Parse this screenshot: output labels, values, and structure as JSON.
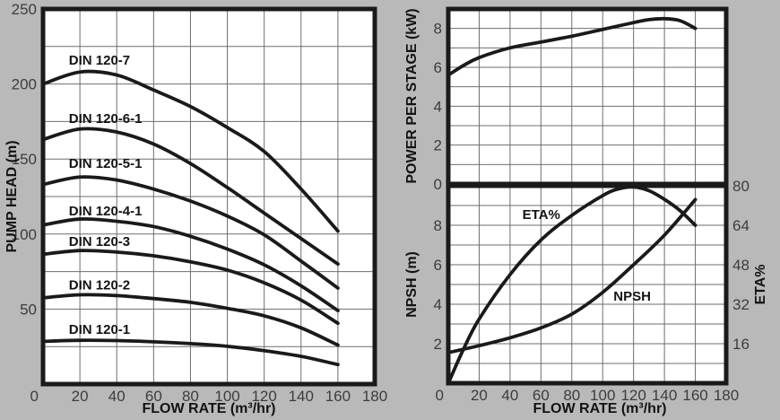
{
  "colors": {
    "background": "#b9b9b9",
    "plot_bg": "#ffffff",
    "grid": "#6e6e6e",
    "curve": "#1a1a1a",
    "border": "#1a1a1a",
    "tick_text": "#3d3d3d",
    "title_text": "#131313"
  },
  "chart_data": [
    {
      "id": "pump-head",
      "type": "line",
      "title": "",
      "xlabel": "FLOW RATE (m³/hr)",
      "ylabel": "PUMP HEAD (m)",
      "xlim": [
        0,
        180
      ],
      "ylim": [
        0,
        250
      ],
      "xticks": [
        0,
        20,
        40,
        60,
        80,
        100,
        120,
        140,
        160,
        180
      ],
      "yticks": [
        50,
        100,
        150,
        200,
        250
      ],
      "grid_x_step": 20,
      "grid_y_step": 25,
      "grid": true,
      "legend": "labels drawn inside plot above each curve",
      "x": [
        0,
        20,
        40,
        60,
        80,
        100,
        120,
        140,
        160
      ],
      "series": [
        {
          "name": "DIN 120-7",
          "values": [
            200,
            208,
            206,
            196,
            185,
            171,
            155,
            130,
            102
          ]
        },
        {
          "name": "DIN 120-6-1",
          "values": [
            163,
            170,
            168,
            160,
            147,
            131,
            114,
            97,
            80
          ]
        },
        {
          "name": "DIN 120-5-1",
          "values": [
            133,
            138,
            136,
            130,
            122,
            112,
            99.5,
            82,
            64
          ]
        },
        {
          "name": "DIN 120-4-1",
          "values": [
            106,
            110,
            108.5,
            105,
            98.5,
            90,
            79.5,
            65.5,
            49
          ]
        },
        {
          "name": "DIN 120-3",
          "values": [
            86.5,
            89,
            88,
            85.5,
            81.5,
            76,
            67.5,
            56,
            40.5
          ]
        },
        {
          "name": "DIN 120-2",
          "values": [
            57.5,
            59.5,
            59,
            57,
            54.5,
            50.5,
            45.5,
            37.5,
            26
          ]
        },
        {
          "name": "DIN 120-1",
          "values": [
            28.5,
            29.2,
            29,
            28.2,
            27,
            25.2,
            22.3,
            18.5,
            13
          ]
        }
      ],
      "annotations": [
        {
          "text": "DIN 120-7",
          "x": 14,
          "y": 216
        },
        {
          "text": "DIN 120-6-1",
          "x": 14,
          "y": 177
        },
        {
          "text": "DIN 120-5-1",
          "x": 14,
          "y": 147
        },
        {
          "text": "DIN 120-4-1",
          "x": 14,
          "y": 115.5
        },
        {
          "text": "DIN 120-3",
          "x": 14,
          "y": 95
        },
        {
          "text": "DIN 120-2",
          "x": 14,
          "y": 66
        },
        {
          "text": "DIN 120-1",
          "x": 14,
          "y": 36.5
        }
      ]
    },
    {
      "id": "power",
      "type": "line",
      "title": "",
      "xlabel": "",
      "ylabel": "POWER PER STAGE (kW)",
      "xlim": [
        0,
        180
      ],
      "ylim": [
        0,
        9
      ],
      "xticks": [],
      "yticks": [
        0,
        2,
        4,
        6,
        8
      ],
      "grid_x_step": 20,
      "grid_y_step": 1,
      "grid": true,
      "series": [
        {
          "name": "POWER PER STAGE",
          "x": [
            0,
            10,
            20,
            40,
            60,
            80,
            100,
            120,
            130,
            140,
            150,
            160
          ],
          "values": [
            5.6,
            6.1,
            6.5,
            7.0,
            7.3,
            7.6,
            7.95,
            8.3,
            8.45,
            8.5,
            8.4,
            8.0
          ]
        }
      ],
      "annotations": []
    },
    {
      "id": "npsh-eta",
      "type": "line",
      "title": "",
      "xlabel": "FLOW RATE (m³/hr)",
      "ylabel": "NPSH (m)",
      "ylabel_right": "ETA%",
      "xlim": [
        0,
        180
      ],
      "ylim": [
        0,
        10
      ],
      "ylim_right": [
        0,
        80
      ],
      "xticks": [
        0,
        20,
        40,
        60,
        80,
        100,
        120,
        140,
        160,
        180
      ],
      "yticks": [
        2,
        4,
        6,
        8
      ],
      "yticks_right": [
        16,
        32,
        48,
        64,
        80
      ],
      "grid_x_step": 20,
      "grid_y_step": 1,
      "grid": true,
      "series": [
        {
          "name": "ETA%",
          "axis": "right",
          "x": [
            0,
            10,
            20,
            40,
            60,
            80,
            100,
            110,
            120,
            130,
            140,
            150,
            160
          ],
          "values": [
            0,
            14,
            26,
            44,
            58,
            68,
            76,
            78.7,
            79.5,
            78,
            74.5,
            70,
            64
          ]
        },
        {
          "name": "NPSH",
          "axis": "left",
          "x": [
            0,
            20,
            40,
            60,
            80,
            100,
            120,
            140,
            160
          ],
          "values": [
            1.55,
            1.9,
            2.3,
            2.8,
            3.5,
            4.6,
            6.0,
            7.5,
            9.3
          ]
        }
      ],
      "annotations": [
        {
          "text": "ETA%",
          "x": 48,
          "y": 8.55
        },
        {
          "text": "NPSH",
          "x": 107,
          "y": 4.4
        }
      ]
    }
  ]
}
